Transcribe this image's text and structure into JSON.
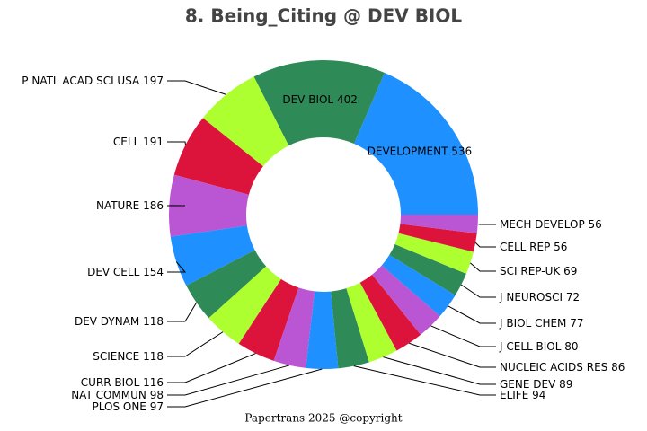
{
  "chart_data": {
    "type": "donut",
    "title": "8. Being_Citing @ DEV BIOL",
    "categories": [
      "DEVELOPMENT",
      "DEV BIOL",
      "P NATL ACAD SCI USA",
      "CELL",
      "NATURE",
      "DEV CELL",
      "DEV DYNAM",
      "SCIENCE",
      "CURR BIOL",
      "NAT COMMUN",
      "PLOS ONE",
      "ELIFE",
      "GENE DEV",
      "NUCLEIC ACIDS RES",
      "J CELL BIOL",
      "J BIOL CHEM",
      "J NEUROSCI",
      "SCI REP-UK",
      "CELL REP",
      "MECH DEVELOP"
    ],
    "values": [
      536,
      402,
      197,
      191,
      186,
      154,
      118,
      118,
      116,
      98,
      97,
      94,
      89,
      86,
      80,
      77,
      72,
      69,
      56,
      56
    ],
    "colors": [
      "#1e90ff",
      "#2e8b57",
      "#adff2f",
      "#dc143c",
      "#ba55d3"
    ],
    "footer": "Papertrans 2025 @copyright"
  }
}
